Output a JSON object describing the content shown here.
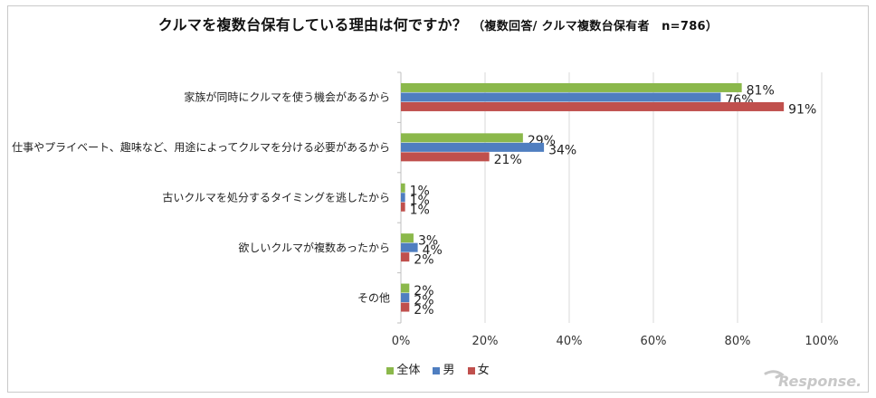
{
  "title": {
    "main": "クルマを複数台保有している理由は何ですか？",
    "sub": "（複数回答/ クルマ複数台保有者　n=786）"
  },
  "legend": [
    {
      "label": "全体",
      "color": "#8bb84b"
    },
    {
      "label": "男",
      "color": "#4f7ec0"
    },
    {
      "label": "女",
      "color": "#c0504d"
    }
  ],
  "watermark": "Response.",
  "chart_data": {
    "type": "bar",
    "orientation": "horizontal",
    "categories": [
      "家族が同時にクルマを使う機会があるから",
      "仕事やプライベート、趣味など、用途によってクルマを分ける必要があるから",
      "古いクルマを処分するタイミングを逃したから",
      "欲しいクルマが複数あったから",
      "その他"
    ],
    "series": [
      {
        "name": "全体",
        "color": "#8bb84b",
        "values": [
          81,
          29,
          1,
          3,
          2
        ],
        "labels": [
          "81%",
          "29%",
          "1%",
          "3%",
          "2%"
        ]
      },
      {
        "name": "男",
        "color": "#4f7ec0",
        "values": [
          76,
          34,
          1,
          4,
          2
        ],
        "labels": [
          "76%",
          "34%",
          "1%",
          "4%",
          "2%"
        ]
      },
      {
        "name": "女",
        "color": "#c0504d",
        "values": [
          91,
          21,
          1,
          2,
          2
        ],
        "labels": [
          "91%",
          "21%",
          "1%",
          "2%",
          "2%"
        ]
      }
    ],
    "xlim": [
      0,
      100
    ],
    "xticks": [
      "0%",
      "20%",
      "40%",
      "60%",
      "80%",
      "100%"
    ],
    "grid": true,
    "legend_position": "bottom"
  }
}
